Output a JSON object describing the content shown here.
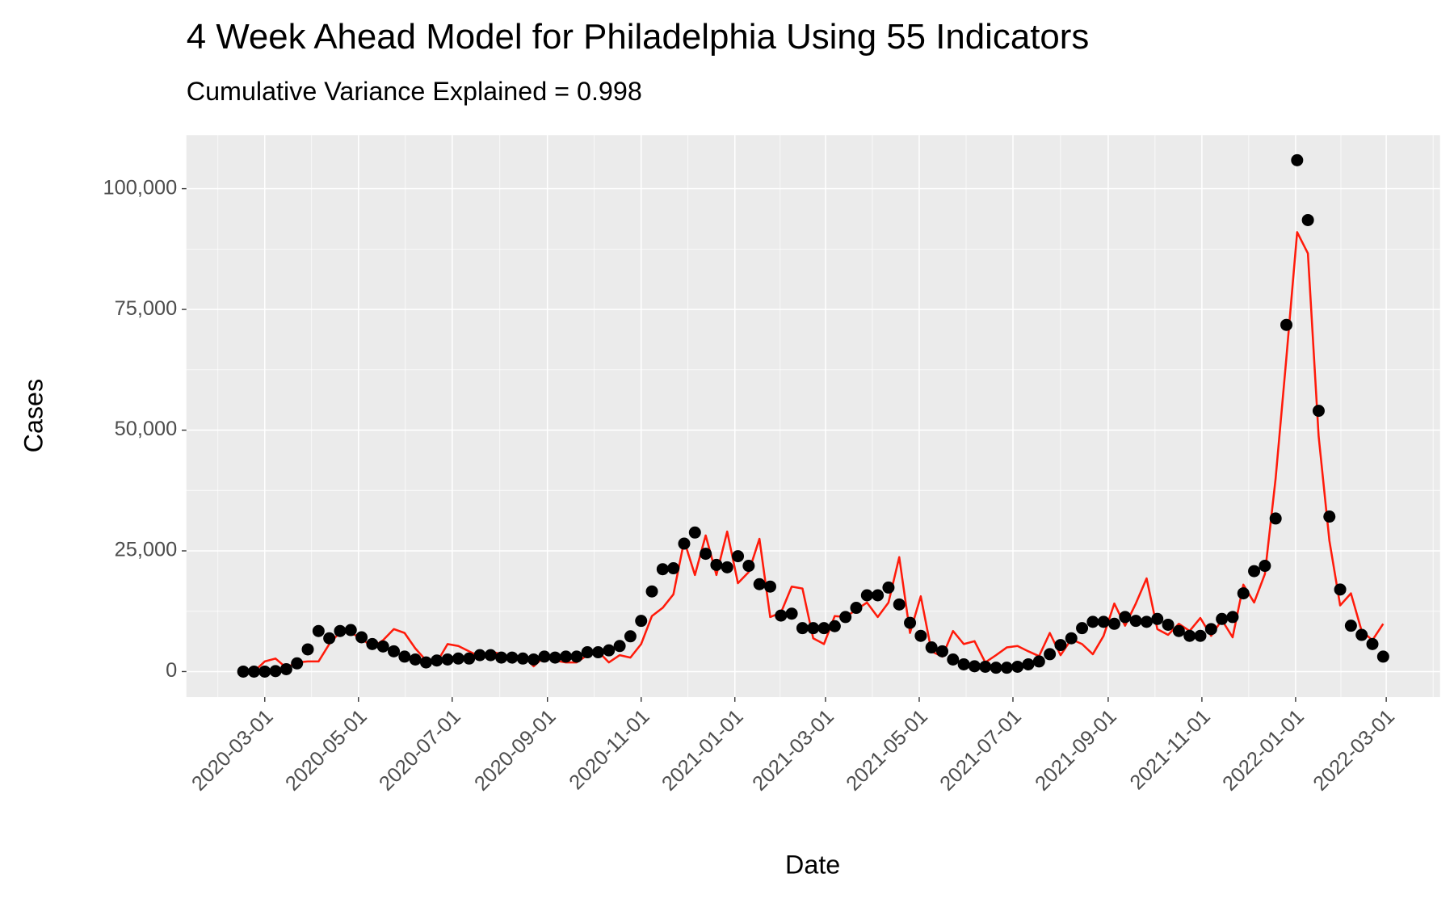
{
  "chart_data": {
    "type": "line",
    "title": "4 Week Ahead Model for Philadelphia Using 55 Indicators",
    "subtitle": "Cumulative Variance Explained = 0.998",
    "x_label": "Date",
    "y_label": "Cases",
    "grid": true,
    "x": [
      "2020-02-16",
      "2020-02-23",
      "2020-03-01",
      "2020-03-08",
      "2020-03-15",
      "2020-03-22",
      "2020-03-29",
      "2020-04-05",
      "2020-04-12",
      "2020-04-19",
      "2020-04-26",
      "2020-05-03",
      "2020-05-10",
      "2020-05-17",
      "2020-05-24",
      "2020-05-31",
      "2020-06-07",
      "2020-06-14",
      "2020-06-21",
      "2020-06-28",
      "2020-07-05",
      "2020-07-12",
      "2020-07-19",
      "2020-07-26",
      "2020-08-02",
      "2020-08-09",
      "2020-08-16",
      "2020-08-23",
      "2020-08-30",
      "2020-09-06",
      "2020-09-13",
      "2020-09-20",
      "2020-09-27",
      "2020-10-04",
      "2020-10-11",
      "2020-10-18",
      "2020-10-25",
      "2020-11-01",
      "2020-11-08",
      "2020-11-15",
      "2020-11-22",
      "2020-11-29",
      "2020-12-06",
      "2020-12-13",
      "2020-12-20",
      "2020-12-27",
      "2021-01-03",
      "2021-01-10",
      "2021-01-17",
      "2021-01-24",
      "2021-01-31",
      "2021-02-07",
      "2021-02-14",
      "2021-02-21",
      "2021-02-28",
      "2021-03-07",
      "2021-03-14",
      "2021-03-21",
      "2021-03-28",
      "2021-04-04",
      "2021-04-11",
      "2021-04-18",
      "2021-04-25",
      "2021-05-02",
      "2021-05-09",
      "2021-05-16",
      "2021-05-23",
      "2021-05-30",
      "2021-06-06",
      "2021-06-13",
      "2021-06-20",
      "2021-06-27",
      "2021-07-04",
      "2021-07-11",
      "2021-07-18",
      "2021-07-25",
      "2021-08-01",
      "2021-08-08",
      "2021-08-15",
      "2021-08-22",
      "2021-08-29",
      "2021-09-05",
      "2021-09-12",
      "2021-09-19",
      "2021-09-26",
      "2021-10-03",
      "2021-10-10",
      "2021-10-17",
      "2021-10-24",
      "2021-10-31",
      "2021-11-07",
      "2021-11-14",
      "2021-11-21",
      "2021-11-28",
      "2021-12-05",
      "2021-12-12",
      "2021-12-19",
      "2021-12-26",
      "2022-01-02",
      "2022-01-09",
      "2022-01-16",
      "2022-01-23",
      "2022-01-30",
      "2022-02-06",
      "2022-02-13",
      "2022-02-20",
      "2022-02-27"
    ],
    "series": [
      {
        "type": "scatter",
        "color": "#000000",
        "values": [
          0,
          0,
          0,
          100,
          500,
          1700,
          4600,
          8400,
          6900,
          8400,
          8600,
          7100,
          5700,
          5200,
          4200,
          3100,
          2500,
          1900,
          2300,
          2500,
          2700,
          2700,
          3400,
          3400,
          2900,
          2900,
          2700,
          2500,
          3100,
          2900,
          3100,
          3100,
          4000,
          4000,
          4400,
          5300,
          7300,
          10500,
          16600,
          21200,
          21400,
          26500,
          28800,
          24400,
          22100,
          21600,
          23900,
          21900,
          18100,
          17600,
          11600,
          12000,
          9000,
          9000,
          9000,
          9400,
          11300,
          13200,
          15800,
          15800,
          17400,
          13900,
          10100,
          7400,
          5000,
          4200,
          2500,
          1500,
          1100,
          1000,
          800,
          800,
          1000,
          1500,
          2100,
          3600,
          5500,
          6900,
          9000,
          10300,
          10300,
          9900,
          11300,
          10500,
          10300,
          10900,
          9700,
          8400,
          7400,
          7400,
          8800,
          10900,
          11300,
          16200,
          20800,
          21900,
          31700,
          71800,
          105900,
          93500,
          54000,
          32100,
          17000,
          9500,
          7600,
          5700,
          3100
        ]
      },
      {
        "type": "line",
        "color": "#ff1a0a",
        "values": [
          0,
          0,
          2100,
          2700,
          800,
          1900,
          2100,
          2100,
          5700,
          8200,
          8000,
          6900,
          5000,
          6500,
          8800,
          8000,
          4800,
          2300,
          1900,
          5700,
          5300,
          4200,
          3100,
          4200,
          3600,
          1900,
          3400,
          1100,
          3100,
          2300,
          1900,
          1900,
          3400,
          4200,
          1900,
          3400,
          2900,
          5700,
          11500,
          13200,
          16000,
          27100,
          20000,
          28200,
          20000,
          29000,
          18300,
          20600,
          27500,
          11300,
          12200,
          17600,
          17200,
          6900,
          5700,
          11500,
          11300,
          12800,
          14300,
          11300,
          14300,
          23700,
          8000,
          15600,
          4200,
          3100,
          8400,
          5700,
          6300,
          1900,
          3400,
          5000,
          5300,
          4200,
          3200,
          8000,
          3400,
          6700,
          5700,
          3600,
          7400,
          14100,
          9500,
          14100,
          19300,
          8800,
          7600,
          9900,
          8400,
          11100,
          7400,
          10700,
          7100,
          18000,
          14300,
          20200,
          40000,
          65000,
          91000,
          86600,
          48700,
          27100,
          13700,
          16200,
          8400,
          6500,
          9900
        ]
      }
    ],
    "xlim": [
      "2020-01-10",
      "2022-04-05"
    ],
    "xticks": [
      "2020-03-01",
      "2020-05-01",
      "2020-07-01",
      "2020-09-01",
      "2020-11-01",
      "2021-01-01",
      "2021-03-01",
      "2021-05-01",
      "2021-07-01",
      "2021-09-01",
      "2021-11-01",
      "2022-01-01",
      "2022-03-01"
    ],
    "ylim": [
      -5290,
      111090
    ],
    "yticks": [
      0,
      {
        "value": 25000,
        "label": "25,000"
      },
      {
        "value": 50000,
        "label": "50,000"
      },
      {
        "value": 75000,
        "label": "75,000"
      },
      {
        "value": 100000,
        "label": "100,000"
      }
    ]
  }
}
